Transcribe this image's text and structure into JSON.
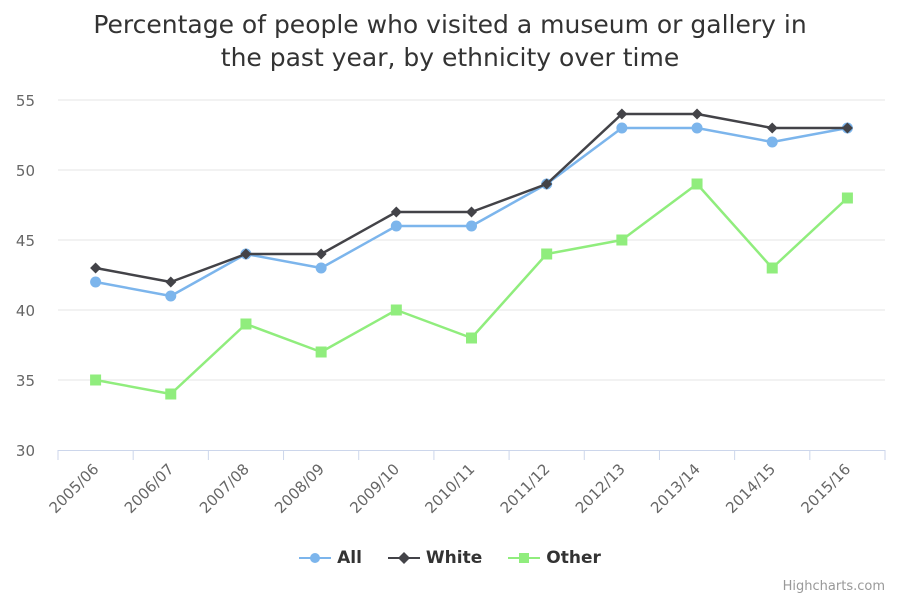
{
  "chart_data": {
    "type": "line",
    "title_lines": [
      "Percentage of people who visited a museum or gallery in",
      "the past year, by ethnicity over time"
    ],
    "categories": [
      "2005/06",
      "2006/07",
      "2007/08",
      "2008/09",
      "2009/10",
      "2010/11",
      "2011/12",
      "2012/13",
      "2013/14",
      "2014/15",
      "2015/16"
    ],
    "series": [
      {
        "name": "All",
        "color": "#7cb5ec",
        "marker": "circle",
        "values": [
          42,
          41,
          44,
          43,
          46,
          46,
          49,
          53,
          53,
          52,
          53
        ]
      },
      {
        "name": "White",
        "color": "#434348",
        "marker": "diamond",
        "values": [
          43,
          42,
          44,
          44,
          47,
          47,
          49,
          54,
          54,
          53,
          53
        ]
      },
      {
        "name": "Other",
        "color": "#90ed7d",
        "marker": "square",
        "values": [
          35,
          34,
          39,
          37,
          40,
          38,
          44,
          45,
          49,
          43,
          48
        ]
      }
    ],
    "ylim": [
      30,
      55
    ],
    "yticks": [
      30,
      35,
      40,
      45,
      50,
      55
    ],
    "xlabel": "",
    "ylabel": "",
    "grid": true,
    "legend_position": "bottom-center"
  },
  "credits": "Highcharts.com"
}
